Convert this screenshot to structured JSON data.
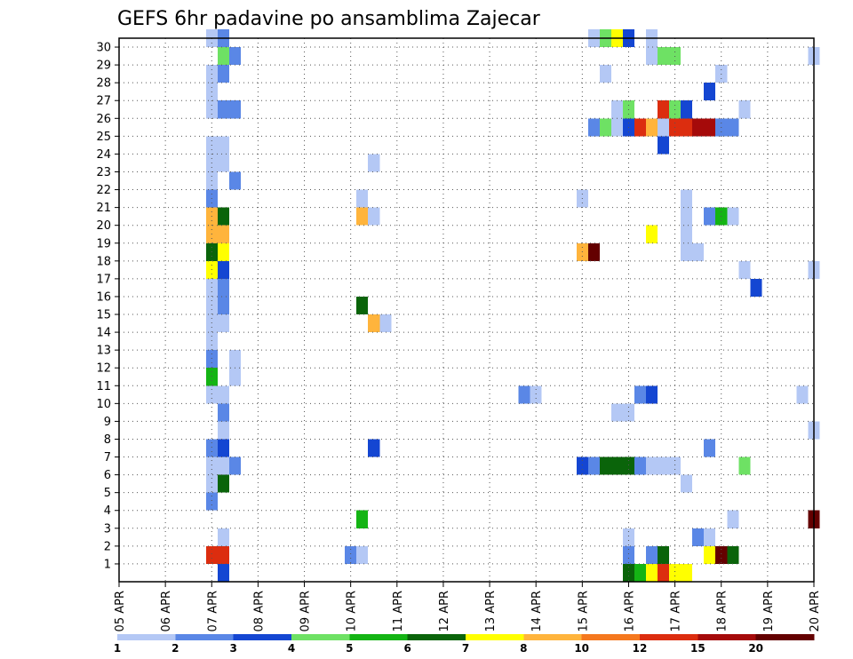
{
  "chart_data": {
    "type": "heatmap",
    "title": "GEFS 6hr padavine po ansamblima Zajecar",
    "x_labels": [
      "05 APR",
      "06 APR",
      "07 APR",
      "08 APR",
      "09 APR",
      "10 APR",
      "11 APR",
      "12 APR",
      "13 APR",
      "14 APR",
      "15 APR",
      "16 APR",
      "17 APR",
      "18 APR",
      "19 APR",
      "20 APR"
    ],
    "y_labels": [
      "1",
      "2",
      "3",
      "4",
      "5",
      "6",
      "7",
      "8",
      "9",
      "10",
      "11",
      "12",
      "13",
      "14",
      "15",
      "16",
      "17",
      "18",
      "19",
      "20",
      "21",
      "22",
      "23",
      "24",
      "25",
      "26",
      "27",
      "28",
      "29",
      "30"
    ],
    "grid": true,
    "legend_placement": "bottom",
    "legend": {
      "labels": [
        "1",
        "2",
        "3",
        "4",
        "5",
        "6",
        "7",
        "8",
        "10",
        "12",
        "15",
        "20"
      ],
      "colors": [
        "#b4c8f5",
        "#5a87e6",
        "#1446d2",
        "#6ee164",
        "#14b414",
        "#0a640a",
        "#ffff00",
        "#ffb43c",
        "#f5781e",
        "#dc2d0f",
        "#a50a0a",
        "#640000"
      ]
    },
    "xlim_hours": [
      0,
      360
    ],
    "hours_per_column": 6,
    "cells": [
      [
        48,
        30,
        0
      ],
      [
        48,
        28,
        0
      ],
      [
        48,
        27,
        0
      ],
      [
        48,
        26,
        0
      ],
      [
        48,
        23,
        0
      ],
      [
        48,
        24,
        0
      ],
      [
        48,
        22,
        0
      ],
      [
        48,
        21,
        1
      ],
      [
        48,
        17,
        6
      ],
      [
        48,
        16,
        0
      ],
      [
        48,
        15,
        0
      ],
      [
        48,
        14,
        0
      ],
      [
        48,
        13,
        0
      ],
      [
        48,
        12,
        1
      ],
      [
        48,
        11,
        4
      ],
      [
        48,
        10,
        0
      ],
      [
        48,
        7,
        1
      ],
      [
        48,
        6,
        0
      ],
      [
        48,
        5,
        0
      ],
      [
        48,
        4,
        1
      ],
      [
        48,
        1,
        9
      ],
      [
        48,
        20,
        7
      ],
      [
        48,
        19,
        7
      ],
      [
        48,
        18,
        5
      ],
      [
        54,
        30,
        1
      ],
      [
        54,
        29,
        3
      ],
      [
        54,
        28,
        1
      ],
      [
        54,
        26,
        1
      ],
      [
        54,
        23,
        0
      ],
      [
        54,
        24,
        0
      ],
      [
        54,
        20,
        5
      ],
      [
        54,
        19,
        7
      ],
      [
        54,
        18,
        6
      ],
      [
        54,
        17,
        2
      ],
      [
        54,
        16,
        1
      ],
      [
        54,
        15,
        1
      ],
      [
        54,
        14,
        0
      ],
      [
        54,
        10,
        0
      ],
      [
        54,
        9,
        1
      ],
      [
        54,
        8,
        0
      ],
      [
        54,
        7,
        2
      ],
      [
        54,
        5,
        5
      ],
      [
        54,
        2,
        0
      ],
      [
        54,
        1,
        9
      ],
      [
        54,
        0,
        2
      ],
      [
        54,
        6,
        0
      ],
      [
        60,
        29,
        1
      ],
      [
        60,
        26,
        1
      ],
      [
        60,
        22,
        1
      ],
      [
        60,
        12,
        0
      ],
      [
        60,
        11,
        0
      ],
      [
        60,
        6,
        1
      ],
      [
        120,
        1,
        1
      ],
      [
        126,
        21,
        0
      ],
      [
        126,
        20,
        7
      ],
      [
        126,
        15,
        5
      ],
      [
        126,
        3,
        4
      ],
      [
        126,
        1,
        0
      ],
      [
        132,
        23,
        0
      ],
      [
        132,
        20,
        0
      ],
      [
        132,
        14,
        7
      ],
      [
        132,
        7,
        2
      ],
      [
        138,
        14,
        0
      ],
      [
        210,
        10,
        1
      ],
      [
        216,
        10,
        0
      ],
      [
        240,
        21,
        0
      ],
      [
        240,
        18,
        7
      ],
      [
        240,
        6,
        2
      ],
      [
        246,
        30,
        0
      ],
      [
        246,
        25,
        1
      ],
      [
        246,
        18,
        11
      ],
      [
        246,
        6,
        1
      ],
      [
        252,
        30,
        3
      ],
      [
        252,
        28,
        0
      ],
      [
        252,
        25,
        3
      ],
      [
        252,
        6,
        5
      ],
      [
        258,
        30,
        6
      ],
      [
        258,
        26,
        0
      ],
      [
        258,
        25,
        0
      ],
      [
        258,
        9,
        0
      ],
      [
        258,
        6,
        5
      ],
      [
        264,
        30,
        2
      ],
      [
        264,
        26,
        3
      ],
      [
        264,
        25,
        2
      ],
      [
        264,
        9,
        0
      ],
      [
        264,
        6,
        5
      ],
      [
        264,
        2,
        0
      ],
      [
        264,
        1,
        1
      ],
      [
        264,
        0,
        5
      ],
      [
        270,
        25,
        9
      ],
      [
        270,
        10,
        1
      ],
      [
        270,
        6,
        1
      ],
      [
        270,
        0,
        4
      ],
      [
        276,
        30,
        0
      ],
      [
        276,
        29,
        0
      ],
      [
        276,
        25,
        7
      ],
      [
        276,
        19,
        6
      ],
      [
        276,
        10,
        2
      ],
      [
        276,
        6,
        0
      ],
      [
        276,
        1,
        1
      ],
      [
        276,
        0,
        6
      ],
      [
        282,
        29,
        3
      ],
      [
        282,
        26,
        9
      ],
      [
        282,
        25,
        0
      ],
      [
        282,
        24,
        2
      ],
      [
        282,
        6,
        0
      ],
      [
        282,
        1,
        5
      ],
      [
        282,
        0,
        9
      ],
      [
        288,
        29,
        3
      ],
      [
        288,
        26,
        3
      ],
      [
        288,
        25,
        9
      ],
      [
        288,
        6,
        0
      ],
      [
        288,
        0,
        6
      ],
      [
        294,
        26,
        2
      ],
      [
        294,
        25,
        9
      ],
      [
        294,
        21,
        0
      ],
      [
        294,
        20,
        0
      ],
      [
        294,
        19,
        0
      ],
      [
        294,
        18,
        0
      ],
      [
        294,
        5,
        0
      ],
      [
        294,
        0,
        6
      ],
      [
        300,
        25,
        10
      ],
      [
        300,
        18,
        0
      ],
      [
        300,
        2,
        1
      ],
      [
        306,
        27,
        2
      ],
      [
        306,
        25,
        10
      ],
      [
        306,
        20,
        1
      ],
      [
        306,
        7,
        1
      ],
      [
        306,
        2,
        0
      ],
      [
        306,
        1,
        6
      ],
      [
        312,
        28,
        0
      ],
      [
        312,
        25,
        1
      ],
      [
        312,
        20,
        4
      ],
      [
        312,
        1,
        11
      ],
      [
        318,
        25,
        1
      ],
      [
        318,
        20,
        0
      ],
      [
        318,
        3,
        0
      ],
      [
        318,
        1,
        5
      ],
      [
        324,
        26,
        0
      ],
      [
        324,
        17,
        0
      ],
      [
        324,
        6,
        3
      ],
      [
        330,
        16,
        2
      ],
      [
        354,
        10,
        0
      ],
      [
        360,
        29,
        0
      ],
      [
        360,
        17,
        0
      ],
      [
        360,
        8,
        0
      ],
      [
        360,
        3,
        11
      ]
    ]
  }
}
